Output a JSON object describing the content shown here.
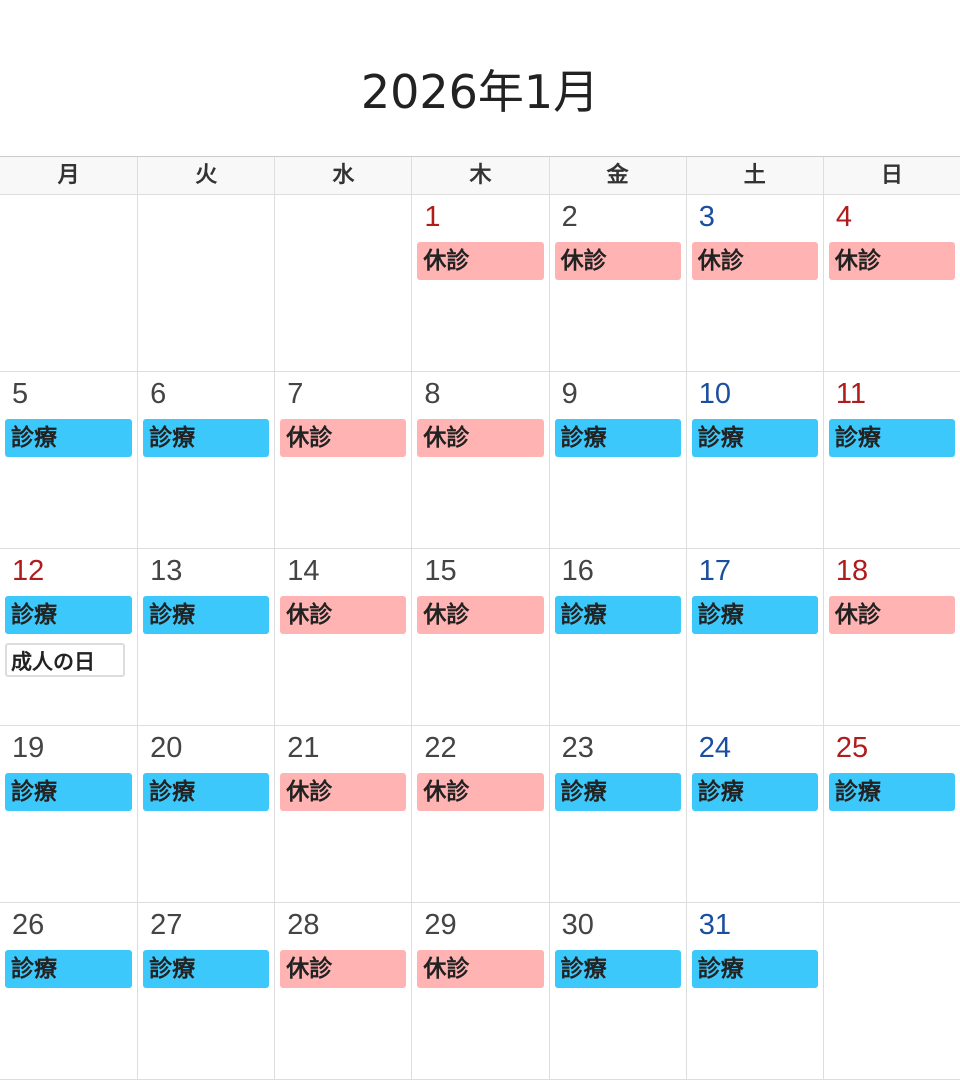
{
  "title": "2026年1月",
  "weekdays": [
    "月",
    "火",
    "水",
    "木",
    "金",
    "土",
    "日"
  ],
  "labels": {
    "open": "診療",
    "closed": "休診"
  },
  "colors": {
    "open": "#3cc8fa",
    "closed": "#ffb3b3",
    "saturday": "#1a4fa0",
    "holiday": "#b01c1c"
  },
  "weeks": [
    [
      null,
      null,
      null,
      {
        "day": "1",
        "status": "closed",
        "color": "red"
      },
      {
        "day": "2",
        "status": "closed"
      },
      {
        "day": "3",
        "status": "closed",
        "color": "sat"
      },
      {
        "day": "4",
        "status": "closed",
        "color": "red"
      }
    ],
    [
      {
        "day": "5",
        "status": "open"
      },
      {
        "day": "6",
        "status": "open"
      },
      {
        "day": "7",
        "status": "closed"
      },
      {
        "day": "8",
        "status": "closed"
      },
      {
        "day": "9",
        "status": "open"
      },
      {
        "day": "10",
        "status": "open",
        "color": "sat"
      },
      {
        "day": "11",
        "status": "open",
        "color": "red"
      }
    ],
    [
      {
        "day": "12",
        "status": "open",
        "color": "red",
        "holiday": "成人の日"
      },
      {
        "day": "13",
        "status": "open"
      },
      {
        "day": "14",
        "status": "closed"
      },
      {
        "day": "15",
        "status": "closed"
      },
      {
        "day": "16",
        "status": "open"
      },
      {
        "day": "17",
        "status": "open",
        "color": "sat"
      },
      {
        "day": "18",
        "status": "closed",
        "color": "red"
      }
    ],
    [
      {
        "day": "19",
        "status": "open"
      },
      {
        "day": "20",
        "status": "open"
      },
      {
        "day": "21",
        "status": "closed"
      },
      {
        "day": "22",
        "status": "closed"
      },
      {
        "day": "23",
        "status": "open"
      },
      {
        "day": "24",
        "status": "open",
        "color": "sat"
      },
      {
        "day": "25",
        "status": "open",
        "color": "red"
      }
    ],
    [
      {
        "day": "26",
        "status": "open"
      },
      {
        "day": "27",
        "status": "open"
      },
      {
        "day": "28",
        "status": "closed"
      },
      {
        "day": "29",
        "status": "closed"
      },
      {
        "day": "30",
        "status": "open"
      },
      {
        "day": "31",
        "status": "open",
        "color": "sat"
      },
      null
    ]
  ]
}
